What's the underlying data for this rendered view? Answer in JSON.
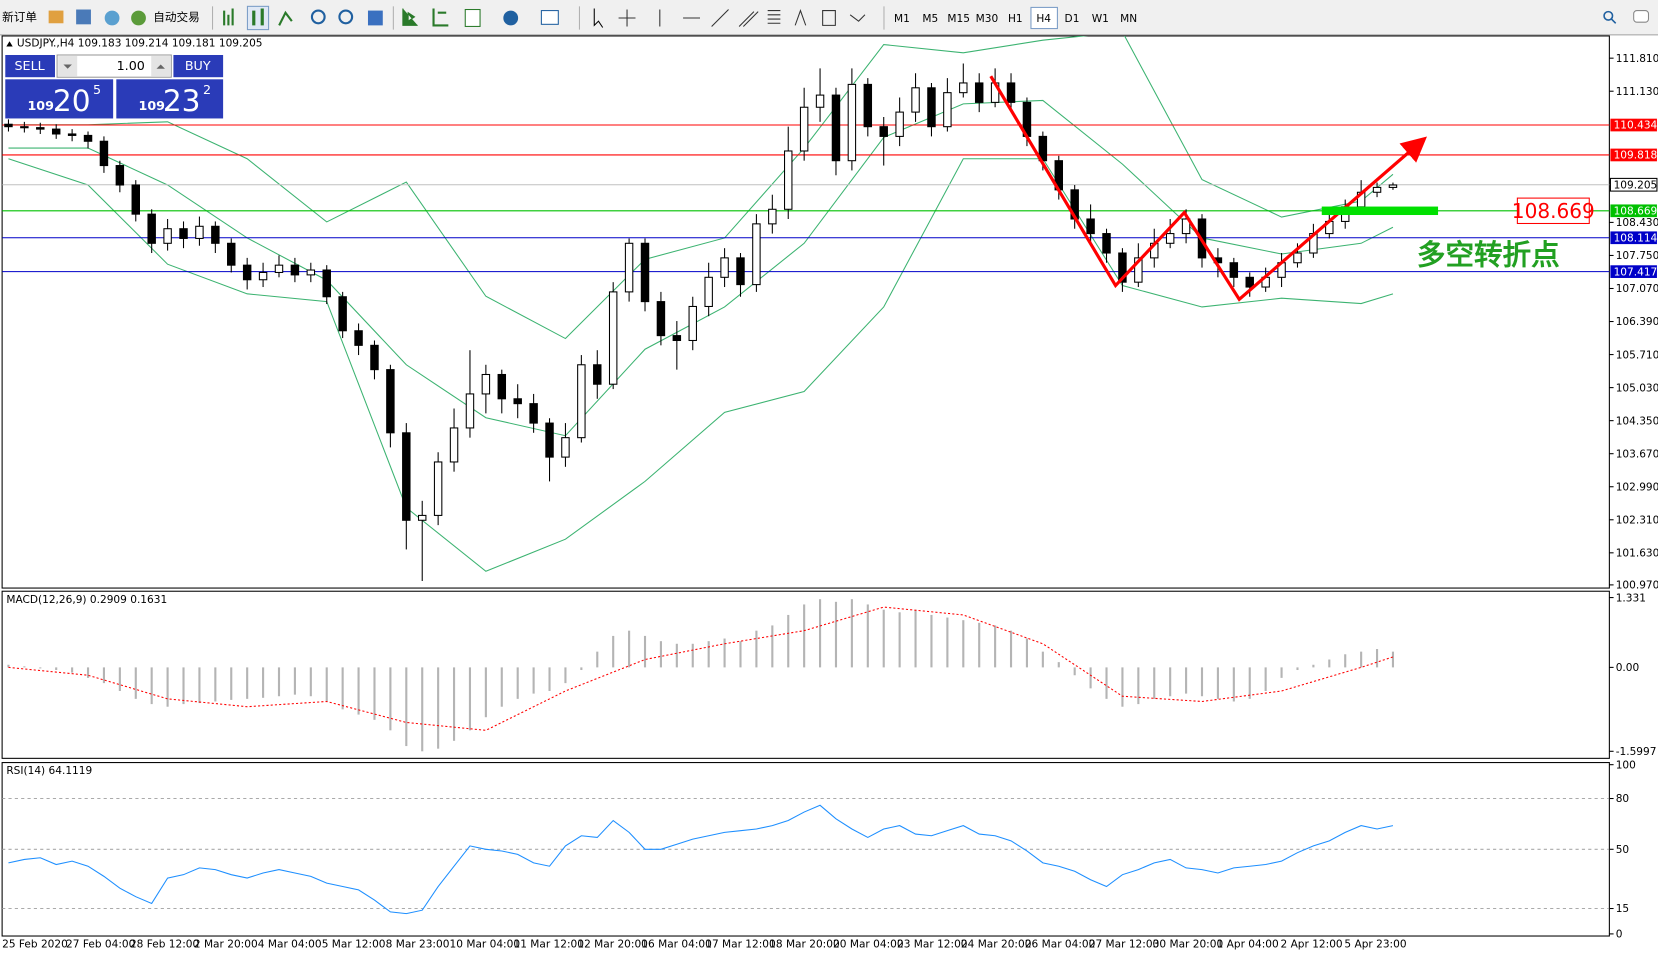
{
  "toolbar": {
    "new_order": "新订单",
    "auto_trading": "自动交易",
    "timeframes": [
      {
        "label": "M1",
        "active": false
      },
      {
        "label": "M5",
        "active": false
      },
      {
        "label": "M15",
        "active": false
      },
      {
        "label": "M30",
        "active": false
      },
      {
        "label": "H1",
        "active": false
      },
      {
        "label": "H4",
        "active": true
      },
      {
        "label": "D1",
        "active": false
      },
      {
        "label": "W1",
        "active": false
      },
      {
        "label": "MN",
        "active": false
      }
    ]
  },
  "trade_panel": {
    "sell": "SELL",
    "buy": "BUY",
    "lots": "1.00",
    "sell_price": {
      "big": "109",
      "main": "20",
      "pip": "5"
    },
    "buy_price": {
      "big": "109",
      "main": "23",
      "pip": "2"
    }
  },
  "chart_data": [
    {
      "type": "candlestick",
      "title": "USDJPY.,H4  109.183 109.214 109.181 109.205",
      "candles": {
        "open": [
          110.45,
          110.4,
          110.38,
          110.35,
          110.25,
          110.22,
          110.1,
          109.6,
          109.2,
          108.6,
          108.0,
          108.3,
          108.1,
          108.35,
          108.0,
          107.55,
          107.25,
          107.4,
          107.55,
          107.35,
          107.45,
          106.9,
          106.2,
          105.9,
          105.4,
          104.1,
          102.3,
          102.4,
          103.5,
          104.2,
          104.9,
          105.3,
          104.8,
          104.7,
          104.3,
          103.6,
          104.0,
          105.5,
          105.1,
          107.0,
          108.0,
          106.8,
          106.1,
          106.0,
          106.7,
          107.3,
          107.7,
          107.15,
          108.4,
          108.7,
          109.9,
          110.8,
          111.05,
          109.7,
          111.27,
          110.4,
          110.2,
          110.7,
          111.2,
          110.4,
          111.1,
          111.3,
          110.9,
          111.3,
          110.9,
          110.2,
          109.7,
          109.1,
          108.5,
          108.2,
          107.8,
          107.2,
          107.7,
          108.0,
          108.2,
          108.5,
          107.7,
          107.6,
          107.3,
          107.1,
          107.3,
          107.6,
          107.8,
          108.2,
          108.45,
          108.75,
          109.05,
          109.15
        ],
        "high": [
          110.55,
          110.5,
          110.48,
          110.45,
          110.35,
          110.3,
          110.2,
          109.7,
          109.3,
          108.7,
          108.5,
          108.45,
          108.55,
          108.45,
          108.1,
          107.7,
          107.6,
          107.75,
          107.7,
          107.6,
          107.55,
          107.0,
          106.35,
          106.0,
          105.5,
          104.3,
          102.7,
          103.7,
          104.6,
          105.8,
          105.5,
          105.4,
          105.1,
          104.9,
          104.4,
          104.3,
          105.7,
          105.8,
          107.2,
          108.1,
          108.1,
          107.0,
          106.4,
          106.9,
          107.6,
          107.9,
          107.8,
          108.6,
          109.0,
          110.4,
          111.2,
          111.6,
          111.2,
          111.6,
          111.4,
          110.6,
          111.0,
          111.5,
          111.3,
          111.4,
          111.7,
          111.5,
          111.6,
          111.5,
          111.0,
          110.3,
          109.8,
          109.2,
          108.8,
          108.3,
          107.9,
          108.0,
          108.3,
          108.5,
          108.7,
          108.6,
          107.9,
          107.7,
          107.4,
          107.5,
          107.8,
          108.0,
          108.4,
          108.6,
          108.9,
          109.3,
          109.25,
          109.25
        ],
        "low": [
          110.3,
          110.28,
          110.25,
          110.15,
          110.1,
          109.95,
          109.45,
          109.05,
          108.45,
          107.8,
          107.85,
          107.9,
          107.95,
          107.8,
          107.4,
          107.05,
          107.1,
          107.3,
          107.2,
          107.2,
          106.75,
          106.05,
          105.7,
          105.2,
          103.8,
          101.7,
          101.05,
          102.2,
          103.3,
          104.0,
          104.5,
          104.5,
          104.4,
          104.1,
          103.1,
          103.4,
          103.9,
          104.8,
          105.0,
          106.8,
          106.6,
          105.9,
          105.4,
          105.8,
          106.5,
          107.1,
          106.9,
          107.0,
          108.2,
          108.5,
          109.7,
          110.5,
          109.4,
          109.5,
          110.2,
          109.6,
          110.0,
          110.5,
          110.2,
          110.3,
          111.0,
          110.7,
          110.8,
          110.7,
          110.0,
          109.5,
          108.9,
          108.3,
          108.0,
          107.6,
          107.0,
          107.1,
          107.5,
          107.9,
          108.0,
          107.5,
          107.3,
          107.1,
          106.9,
          107.0,
          107.1,
          107.5,
          107.7,
          108.1,
          108.3,
          108.6,
          108.95,
          109.1
        ],
        "close": [
          110.4,
          110.38,
          110.35,
          110.25,
          110.22,
          110.1,
          109.6,
          109.2,
          108.6,
          108.0,
          108.3,
          108.1,
          108.35,
          108.0,
          107.55,
          107.25,
          107.4,
          107.55,
          107.35,
          107.45,
          106.9,
          106.2,
          105.9,
          105.4,
          104.1,
          102.3,
          102.4,
          103.5,
          104.2,
          104.9,
          105.3,
          104.8,
          104.7,
          104.3,
          103.6,
          104.0,
          105.5,
          105.1,
          107.0,
          108.0,
          106.8,
          106.1,
          106.0,
          106.7,
          107.3,
          107.7,
          107.15,
          108.4,
          108.7,
          109.9,
          110.8,
          111.05,
          109.7,
          111.27,
          110.4,
          110.2,
          110.7,
          111.2,
          110.4,
          111.1,
          111.3,
          110.9,
          111.3,
          110.9,
          110.2,
          109.7,
          109.1,
          108.5,
          108.2,
          107.8,
          107.2,
          107.7,
          108.0,
          108.2,
          108.5,
          107.7,
          107.6,
          107.3,
          107.1,
          107.3,
          107.6,
          107.8,
          108.2,
          108.45,
          108.75,
          109.05,
          109.15,
          109.2
        ]
      },
      "bull_color": "#ffffff",
      "bear_color": "#000000",
      "bands": {
        "color": "#3cb371",
        "x": [
          0,
          5,
          10,
          15,
          20,
          25,
          30,
          35,
          40,
          45,
          50,
          55,
          60,
          65,
          70,
          75,
          80,
          85,
          87
        ],
        "upper": [
          110.44,
          110.44,
          110.5,
          109.74,
          108.44,
          109.26,
          106.91,
          106.04,
          107.67,
          108.11,
          109.96,
          112.09,
          111.92,
          112.18,
          112.35,
          109.31,
          108.54,
          108.87,
          109.42
        ],
        "middle": [
          109.96,
          109.96,
          109.2,
          108.11,
          107.24,
          105.5,
          104.41,
          104.04,
          105.82,
          106.69,
          108.0,
          110.18,
          110.87,
          110.94,
          109.63,
          108.11,
          107.78,
          108.0,
          108.33
        ],
        "lower": [
          109.74,
          109.2,
          107.57,
          106.96,
          106.8,
          102.56,
          101.25,
          101.91,
          103.1,
          104.52,
          104.95,
          106.69,
          109.74,
          109.74,
          107.13,
          106.69,
          106.87,
          106.76,
          106.96
        ]
      },
      "levels": [
        {
          "value": 110.434,
          "color": "#ff0000"
        },
        {
          "value": 109.818,
          "color": "#ff0000"
        },
        {
          "value": 108.669,
          "color": "#00c000"
        },
        {
          "value": 108.114,
          "color": "#0000c8"
        },
        {
          "value": 107.417,
          "color": "#0000c8"
        }
      ],
      "current_price": 109.205,
      "annotation": {
        "value": 108.669,
        "text": "多空转折点",
        "bar_color": "#00e000",
        "text_color": "#22a022",
        "label_color": "#ff0000"
      },
      "ylim": [
        100.905,
        112.267
      ],
      "yticks": [
        {
          "value": 111.81,
          "label": "111.810"
        },
        {
          "value": 111.13,
          "label": "111.130"
        },
        {
          "value": 108.43,
          "label": "108.430"
        },
        {
          "value": 107.75,
          "label": "107.750"
        },
        {
          "value": 107.07,
          "label": "107.070"
        },
        {
          "value": 106.39,
          "label": "106.390"
        },
        {
          "value": 105.71,
          "label": "105.710"
        },
        {
          "value": 105.03,
          "label": "105.030"
        },
        {
          "value": 104.35,
          "label": "104.350"
        },
        {
          "value": 103.67,
          "label": "103.670"
        },
        {
          "value": 102.99,
          "label": "102.990"
        },
        {
          "value": 102.31,
          "label": "102.310"
        },
        {
          "value": 101.63,
          "label": "101.630"
        },
        {
          "value": 100.97,
          "label": "100.970"
        }
      ],
      "x_labels": [
        "25 Feb 2020",
        "27 Feb 04:00",
        "28 Feb 12:00",
        "2 Mar 20:00",
        "4 Mar 04:00",
        "5 Mar 12:00",
        "8 Mar 23:00",
        "10 Mar 04:00",
        "11 Mar 12:00",
        "12 Mar 20:00",
        "16 Mar 04:00",
        "17 Mar 12:00",
        "18 Mar 20:00",
        "20 Mar 04:00",
        "23 Mar 12:00",
        "24 Mar 20:00",
        "26 Mar 04:00",
        "27 Mar 12:00",
        "30 Mar 20:00",
        "1 Apr 04:00",
        "2 Apr 12:00",
        "5 Apr 23:00"
      ]
    },
    {
      "type": "macd",
      "label": "MACD(12,26,9) 0.2909 0.1631",
      "histogram": {
        "color": "#b4b4b4",
        "values": [
          0.05,
          0.02,
          -0.02,
          -0.05,
          -0.1,
          -0.2,
          -0.3,
          -0.45,
          -0.6,
          -0.7,
          -0.75,
          -0.7,
          -0.68,
          -0.65,
          -0.62,
          -0.6,
          -0.58,
          -0.55,
          -0.52,
          -0.55,
          -0.65,
          -0.8,
          -0.9,
          -1.0,
          -1.2,
          -1.5,
          -1.6,
          -1.55,
          -1.4,
          -1.2,
          -0.95,
          -0.75,
          -0.6,
          -0.5,
          -0.45,
          -0.3,
          -0.05,
          0.3,
          0.6,
          0.7,
          0.6,
          0.5,
          0.45,
          0.45,
          0.5,
          0.55,
          0.5,
          0.7,
          0.8,
          1.0,
          1.2,
          1.3,
          1.25,
          1.3,
          1.2,
          1.1,
          1.05,
          1.1,
          1.0,
          0.95,
          0.9,
          0.85,
          0.8,
          0.7,
          0.55,
          0.3,
          0.1,
          -0.15,
          -0.4,
          -0.6,
          -0.75,
          -0.7,
          -0.6,
          -0.55,
          -0.5,
          -0.55,
          -0.6,
          -0.65,
          -0.6,
          -0.45,
          -0.2,
          -0.05,
          0.05,
          0.15,
          0.25,
          0.3,
          0.35,
          0.3
        ]
      },
      "signal": {
        "color": "#ff0000",
        "x": [
          0,
          5,
          10,
          15,
          20,
          25,
          30,
          35,
          40,
          45,
          50,
          55,
          60,
          65,
          70,
          75,
          80,
          85,
          87
        ],
        "values": [
          0,
          -0.15,
          -0.6,
          -0.75,
          -0.65,
          -1.05,
          -1.2,
          -0.45,
          0.15,
          0.45,
          0.7,
          1.15,
          1.0,
          0.45,
          -0.55,
          -0.65,
          -0.45,
          0.0,
          0.2
        ]
      },
      "ylim": [
        -1.734,
        1.452
      ],
      "yticks": [
        1.331,
        {
          "value": 0,
          "label": "0.00"
        },
        -1.5997
      ]
    },
    {
      "type": "line",
      "label": "RSI(14) 64.1119",
      "color": "#1e8fff",
      "values": [
        42,
        44,
        45,
        41,
        43,
        40,
        34,
        27,
        22,
        18,
        33,
        35,
        39,
        38,
        35,
        33,
        36,
        38,
        36,
        34,
        30,
        28,
        26,
        20,
        13,
        12,
        14,
        28,
        40,
        52,
        50,
        49,
        47,
        42,
        40,
        52,
        58,
        57,
        67,
        60,
        50,
        50,
        53,
        56,
        58,
        60,
        61,
        62,
        64,
        67,
        72,
        76,
        68,
        62,
        57,
        62,
        64,
        59,
        58,
        61,
        64,
        59,
        58,
        55,
        49,
        42,
        40,
        37,
        32,
        28,
        35,
        38,
        42,
        44,
        39,
        38,
        36,
        39,
        40,
        41,
        43,
        48,
        52,
        55,
        60,
        64,
        62,
        64
      ],
      "ylim": [
        0,
        100
      ],
      "yticks": [
        100,
        80,
        50,
        15,
        0
      ],
      "grid": true
    }
  ]
}
